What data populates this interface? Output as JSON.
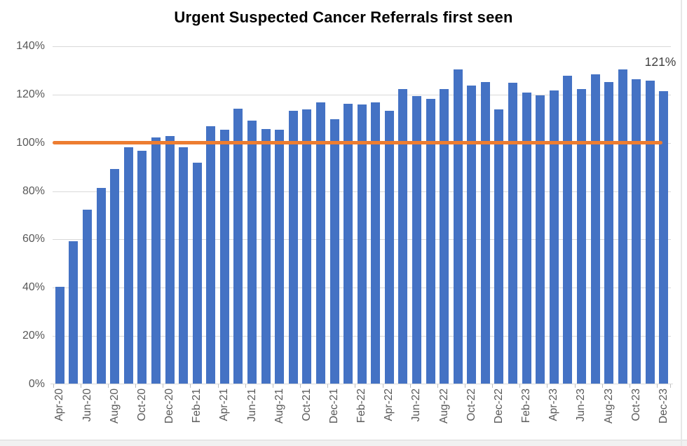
{
  "chart_data": {
    "type": "bar",
    "title": "Urgent Suspected Cancer Referrals first seen",
    "categories": [
      "Apr-20",
      "May-20",
      "Jun-20",
      "Jul-20",
      "Aug-20",
      "Sep-20",
      "Oct-20",
      "Nov-20",
      "Dec-20",
      "Jan-21",
      "Feb-21",
      "Mar-21",
      "Apr-21",
      "May-21",
      "Jun-21",
      "Jul-21",
      "Aug-21",
      "Sep-21",
      "Oct-21",
      "Nov-21",
      "Dec-21",
      "Jan-22",
      "Feb-22",
      "Mar-22",
      "Apr-22",
      "May-22",
      "Jun-22",
      "Jul-22",
      "Aug-22",
      "Sep-22",
      "Oct-22",
      "Nov-22",
      "Dec-22",
      "Jan-23",
      "Feb-23",
      "Mar-23",
      "Apr-23",
      "May-23",
      "Jun-23",
      "Jul-23",
      "Aug-23",
      "Sep-23",
      "Oct-23",
      "Nov-23",
      "Dec-23"
    ],
    "values": [
      40,
      59,
      72,
      81,
      89,
      98,
      96.5,
      102,
      102.5,
      98,
      91.5,
      106.5,
      105,
      114,
      109,
      105.5,
      105,
      113,
      113.5,
      116.5,
      109.5,
      116,
      115.5,
      116.5,
      113,
      122,
      119,
      118,
      122,
      130,
      123.5,
      125,
      113.5,
      124.5,
      120.5,
      119.5,
      121.5,
      127.5,
      122,
      128,
      125,
      130,
      126,
      125.5,
      121
    ],
    "x_tick_labels": [
      "Apr-20",
      "Jun-20",
      "Aug-20",
      "Oct-20",
      "Dec-20",
      "Feb-21",
      "Apr-21",
      "Jun-21",
      "Aug-21",
      "Oct-21",
      "Dec-21",
      "Feb-22",
      "Apr-22",
      "Jun-22",
      "Aug-22",
      "Oct-22",
      "Dec-22",
      "Feb-23",
      "Apr-23",
      "Jun-23",
      "Aug-23",
      "Oct-23",
      "Dec-23"
    ],
    "y_ticks": [
      "0%",
      "20%",
      "40%",
      "60%",
      "80%",
      "100%",
      "120%",
      "140%"
    ],
    "ylim": [
      0,
      140
    ],
    "y_major_unit": 20,
    "grid": "horizontal",
    "legend": "none",
    "xlabel": "",
    "ylabel": "",
    "reference_line": {
      "value": 100,
      "color": "#ED7D31"
    },
    "annotation": {
      "text": "121%"
    },
    "bar_color": "#4472C4",
    "gridline_color": "#D9D9D9",
    "axis_label_color": "#595959",
    "title_color": "#000000"
  }
}
